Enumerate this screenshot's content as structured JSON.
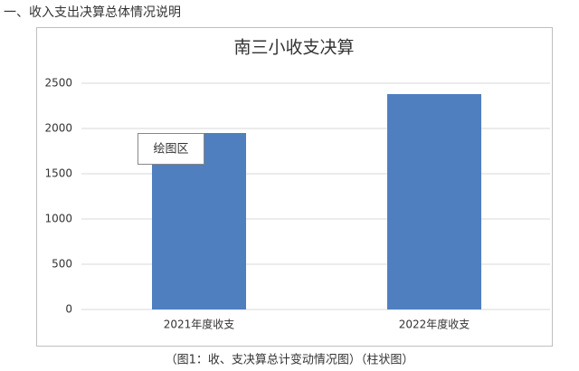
{
  "heading": "一、收入支出决算总体情况说明",
  "caption": "（图1：收、支决算总计变动情况图）（柱状图）",
  "tooltip": "绘图区",
  "chart_data": {
    "type": "bar",
    "title": "南三小收支决算",
    "categories": [
      "2021年度收支",
      "2022年度收支"
    ],
    "values": [
      1950,
      2380
    ],
    "color": "#4f7fbf",
    "ylim": [
      0,
      2500
    ],
    "yticks": [
      0,
      500,
      1000,
      1500,
      2000,
      2500
    ],
    "grid": true
  }
}
